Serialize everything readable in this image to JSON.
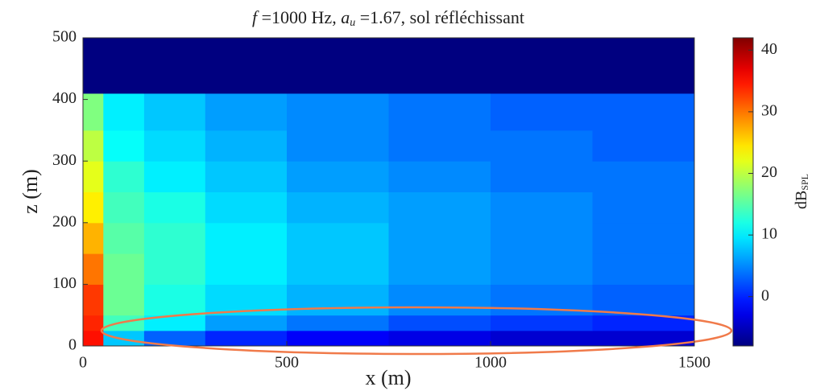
{
  "chart_data": {
    "type": "heatmap",
    "title": [
      "f",
      " =1000 Hz, ",
      "a",
      "u",
      " =1.67, sol réfléchissant"
    ],
    "xlabel": "x (m)",
    "ylabel": "z (m)",
    "colorbar_label": [
      "dB",
      "SPL"
    ],
    "x_edges": [
      0,
      50,
      150,
      300,
      500,
      750,
      1000,
      1250,
      1500
    ],
    "y_edges": [
      0,
      25,
      50,
      100,
      150,
      200,
      250,
      300,
      350,
      410,
      500
    ],
    "values": [
      [
        35,
        8,
        3,
        0,
        -2,
        -3,
        -4,
        -4
      ],
      [
        34,
        14,
        10,
        6,
        4,
        2,
        1,
        0
      ],
      [
        33,
        16,
        12,
        9,
        7,
        5,
        4,
        3
      ],
      [
        30,
        16,
        13,
        10,
        8,
        6,
        5,
        4
      ],
      [
        27,
        15,
        13,
        10,
        8,
        6,
        5,
        4
      ],
      [
        24,
        14,
        12,
        9,
        7,
        6,
        5,
        4
      ],
      [
        22,
        13,
        10,
        8,
        6,
        5,
        4,
        4
      ],
      [
        20,
        11,
        9,
        7,
        5,
        4,
        4,
        3
      ],
      [
        17,
        10,
        8,
        6,
        5,
        4,
        3,
        3
      ],
      [
        -8,
        -8,
        -8,
        -8,
        -8,
        -8,
        -8,
        -8
      ]
    ],
    "colormap": "jet",
    "xlim": [
      0,
      1500
    ],
    "ylim": [
      0,
      500
    ],
    "xticks": [
      0,
      500,
      1000,
      1500
    ],
    "yticks": [
      0,
      100,
      200,
      300,
      400,
      500
    ],
    "clim": [
      -8,
      42
    ],
    "cticks": [
      0,
      10,
      20,
      30,
      40
    ]
  }
}
